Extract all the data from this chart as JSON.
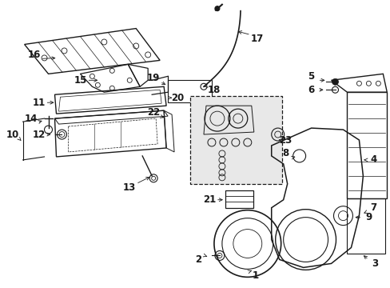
{
  "bg_color": "#ffffff",
  "line_color": "#1a1a1a",
  "gray_fill": "#e8e8e8",
  "fig_width": 4.89,
  "fig_height": 3.6,
  "dpi": 100
}
